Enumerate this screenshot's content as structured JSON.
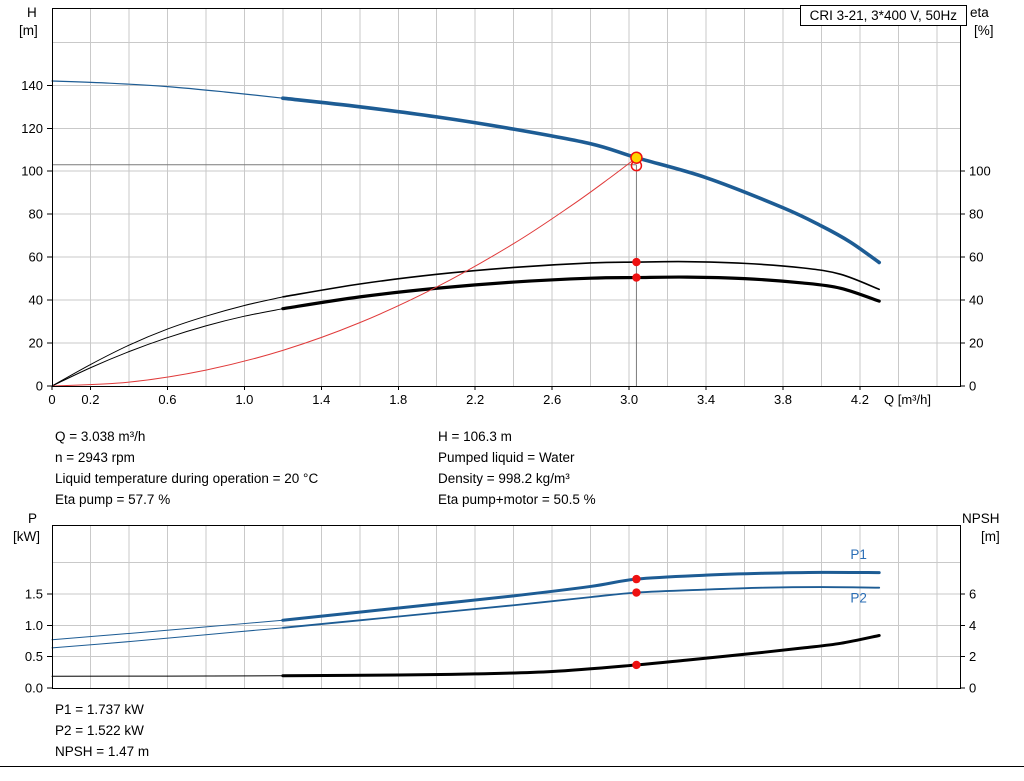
{
  "title_box": "CRI 3-21, 3*400 V, 50Hz",
  "colors": {
    "blue": "#1d5c94",
    "black": "#000000",
    "red": "#e03a3a",
    "marker_red": "#ee1111",
    "marker_yellow": "#ffd400",
    "grid": "#c9c9c9",
    "crosshair": "#7a7a7a",
    "label_blue": "#2a6db5"
  },
  "axis_titles": {
    "h_top": "H",
    "h_unit": "[m]",
    "eta_top": "eta",
    "eta_unit": "[%]",
    "p_top": "P",
    "p_unit": "[kW]",
    "npsh_top": "NPSH",
    "npsh_unit": "[m]"
  },
  "annotations": {
    "left": [
      "Q = 3.038 m³/h",
      "n = 2943 rpm",
      "Liquid temperature during operation = 20 °C",
      "Eta pump = 57.7 %"
    ],
    "right": [
      "H = 106.3 m",
      "Pumped liquid = Water",
      "Density = 998.2 kg/m³",
      "Eta pump+motor = 50.5 %"
    ],
    "bottom": [
      "P1 = 1.737 kW",
      "P2 = 1.522 kW",
      "NPSH = 1.47 m"
    ]
  },
  "chart_data": [
    {
      "type": "line",
      "title": "CRI 3-21, 3*400 V, 50Hz — Head and efficiency vs flow",
      "x_axis": {
        "label": "Q [m³/h]",
        "min": 0,
        "max": 4.72,
        "grid_step": 0.2,
        "ticks": [
          [
            0,
            "0"
          ],
          [
            0.2,
            "0.2"
          ],
          [
            0.6,
            "0.6"
          ],
          [
            1,
            "1.0"
          ],
          [
            1.4,
            "1.4"
          ],
          [
            1.8,
            "1.8"
          ],
          [
            2.2,
            "2.2"
          ],
          [
            2.6,
            "2.6"
          ],
          [
            3,
            "3.0"
          ],
          [
            3.4,
            "3.4"
          ],
          [
            3.8,
            "3.8"
          ],
          [
            4.2,
            "4.2"
          ]
        ]
      },
      "y_left": {
        "label": "H [m]",
        "min": 0,
        "max": 176,
        "grid_step": 20,
        "ticks": [
          [
            0,
            "0"
          ],
          [
            20,
            "20"
          ],
          [
            40,
            "40"
          ],
          [
            60,
            "60"
          ],
          [
            80,
            "80"
          ],
          [
            100,
            "100"
          ],
          [
            120,
            "120"
          ],
          [
            140,
            "140"
          ]
        ]
      },
      "y_right": {
        "label": "eta [%]",
        "min": 0,
        "max": 176,
        "ticks": [
          [
            0,
            "0"
          ],
          [
            20,
            "20"
          ],
          [
            40,
            "40"
          ],
          [
            60,
            "60"
          ],
          [
            80,
            "80"
          ],
          [
            100,
            "100"
          ]
        ]
      },
      "crosshair": {
        "q": 3.038,
        "v": 103
      },
      "series": [
        {
          "name": "h-q-curve-extended",
          "axis": "left",
          "color": "#1d5c94",
          "width": 1.2,
          "points": [
            [
              0,
              142
            ],
            [
              0.3,
              141
            ],
            [
              0.6,
              139.4
            ],
            [
              0.9,
              136.9
            ],
            [
              1.2,
              134
            ]
          ]
        },
        {
          "name": "h-q-curve",
          "axis": "left",
          "color": "#1d5c94",
          "width": 3.6,
          "points": [
            [
              1.2,
              134
            ],
            [
              1.6,
              130
            ],
            [
              2.0,
              125.3
            ],
            [
              2.4,
              119.6
            ],
            [
              2.8,
              112.8
            ],
            [
              3.038,
              106.3
            ],
            [
              3.4,
              97
            ],
            [
              3.8,
              83
            ],
            [
              4.0,
              74.5
            ],
            [
              4.15,
              67
            ],
            [
              4.3,
              57.5
            ]
          ]
        },
        {
          "name": "eta-pump-curve-extended",
          "axis": "right",
          "color": "#000000",
          "width": 1,
          "points": [
            [
              0,
              0
            ],
            [
              0.2,
              10
            ],
            [
              0.4,
              19
            ],
            [
              0.6,
              26.5
            ],
            [
              0.8,
              32.5
            ],
            [
              1.0,
              37.5
            ],
            [
              1.2,
              41.5
            ]
          ]
        },
        {
          "name": "eta-pump-curve",
          "axis": "right",
          "color": "#000000",
          "width": 1.6,
          "points": [
            [
              1.2,
              41.5
            ],
            [
              1.6,
              47.5
            ],
            [
              2.0,
              52
            ],
            [
              2.4,
              55.2
            ],
            [
              2.8,
              57.3
            ],
            [
              3.038,
              57.7
            ],
            [
              3.3,
              57.9
            ],
            [
              3.6,
              57.1
            ],
            [
              3.9,
              55
            ],
            [
              4.1,
              52
            ],
            [
              4.3,
              45
            ]
          ]
        },
        {
          "name": "eta-pump-motor-curve-extended",
          "axis": "right",
          "color": "#000000",
          "width": 1,
          "points": [
            [
              0,
              0
            ],
            [
              0.2,
              8.5
            ],
            [
              0.4,
              16
            ],
            [
              0.6,
              22.5
            ],
            [
              0.8,
              28
            ],
            [
              1.0,
              32.5
            ],
            [
              1.2,
              36
            ]
          ]
        },
        {
          "name": "eta-pump-motor-curve",
          "axis": "right",
          "color": "#000000",
          "width": 3.2,
          "points": [
            [
              1.2,
              36
            ],
            [
              1.6,
              41.5
            ],
            [
              2.0,
              45.5
            ],
            [
              2.4,
              48.4
            ],
            [
              2.8,
              50.2
            ],
            [
              3.038,
              50.5
            ],
            [
              3.3,
              50.7
            ],
            [
              3.6,
              50
            ],
            [
              3.9,
              48
            ],
            [
              4.1,
              45.5
            ],
            [
              4.3,
              39.5
            ]
          ]
        },
        {
          "name": "system-curve",
          "axis": "left",
          "color": "#e03a3a",
          "width": 1,
          "points": [
            [
              0,
              0
            ],
            [
              0.4,
              1.8
            ],
            [
              0.8,
              7.4
            ],
            [
              1.2,
              16.6
            ],
            [
              1.6,
              29.5
            ],
            [
              2.0,
              46.1
            ],
            [
              2.4,
              66.3
            ],
            [
              2.7,
              84
            ],
            [
              2.9,
              96.9
            ],
            [
              3.038,
              106.3
            ]
          ]
        }
      ],
      "markers": [
        {
          "name": "requested-duty-marker",
          "shape": "circle",
          "q": 3.038,
          "v": 102.6,
          "axis": "left",
          "r": 5,
          "fill": "none",
          "stroke": "#ee1111"
        },
        {
          "name": "duty-point-marker",
          "shape": "circle",
          "q": 3.038,
          "v": 106.3,
          "axis": "left",
          "r": 5.5,
          "fill": "#ffd400",
          "stroke": "#ee1111"
        },
        {
          "name": "eta-pump-duty-marker",
          "shape": "dot",
          "q": 3.038,
          "v": 57.7,
          "axis": "right",
          "r": 4.2,
          "fill": "#ee1111"
        },
        {
          "name": "eta-pump-motor-duty-marker",
          "shape": "dot",
          "q": 3.038,
          "v": 50.5,
          "axis": "right",
          "r": 4.2,
          "fill": "#ee1111"
        }
      ],
      "labels": []
    },
    {
      "type": "line",
      "title": "Power and NPSH vs flow",
      "x_axis": {
        "label": "",
        "min": 0,
        "max": 4.72,
        "grid_step": 0.2,
        "ticks": []
      },
      "y_left": {
        "label": "P [kW]",
        "min": 0,
        "max": 2.6,
        "grid_step": 0.5,
        "grid_max": 2.0,
        "ticks": [
          [
            0,
            "0.0"
          ],
          [
            0.5,
            "0.5"
          ],
          [
            1,
            "1.0"
          ],
          [
            1.5,
            "1.5"
          ]
        ]
      },
      "y_right": {
        "label": "NPSH [m]",
        "min": 0,
        "max": 10.4,
        "ticks": [
          [
            0,
            "0"
          ],
          [
            2,
            "2"
          ],
          [
            4,
            "4"
          ],
          [
            6,
            "6"
          ]
        ]
      },
      "series": [
        {
          "name": "p1-curve-extended",
          "axis": "left",
          "color": "#1d5c94",
          "width": 1,
          "points": [
            [
              0,
              0.77
            ],
            [
              0.4,
              0.87
            ],
            [
              0.8,
              0.975
            ],
            [
              1.2,
              1.08
            ]
          ]
        },
        {
          "name": "p1-curve",
          "axis": "left",
          "color": "#1d5c94",
          "width": 3,
          "points": [
            [
              1.2,
              1.08
            ],
            [
              1.6,
              1.21
            ],
            [
              2.0,
              1.34
            ],
            [
              2.4,
              1.47
            ],
            [
              2.8,
              1.62
            ],
            [
              3.038,
              1.737
            ],
            [
              3.4,
              1.8
            ],
            [
              3.7,
              1.83
            ],
            [
              4.0,
              1.845
            ],
            [
              4.3,
              1.84
            ]
          ]
        },
        {
          "name": "p2-curve-extended",
          "axis": "left",
          "color": "#1d5c94",
          "width": 1,
          "points": [
            [
              0,
              0.64
            ],
            [
              0.4,
              0.74
            ],
            [
              0.8,
              0.85
            ],
            [
              1.2,
              0.96
            ]
          ]
        },
        {
          "name": "p2-curve",
          "axis": "left",
          "color": "#1d5c94",
          "width": 1.8,
          "points": [
            [
              1.2,
              0.96
            ],
            [
              1.6,
              1.08
            ],
            [
              2.0,
              1.2
            ],
            [
              2.4,
              1.32
            ],
            [
              2.8,
              1.45
            ],
            [
              3.038,
              1.522
            ],
            [
              3.4,
              1.57
            ],
            [
              3.7,
              1.6
            ],
            [
              4.0,
              1.61
            ],
            [
              4.3,
              1.6
            ]
          ]
        },
        {
          "name": "npsh-curve-extended",
          "axis": "right",
          "color": "#000000",
          "width": 1,
          "points": [
            [
              0,
              0.75
            ],
            [
              0.6,
              0.76
            ],
            [
              1.2,
              0.78
            ]
          ]
        },
        {
          "name": "npsh-curve",
          "axis": "right",
          "color": "#000000",
          "width": 3,
          "points": [
            [
              1.2,
              0.78
            ],
            [
              1.8,
              0.83
            ],
            [
              2.2,
              0.9
            ],
            [
              2.6,
              1.05
            ],
            [
              3.038,
              1.47
            ],
            [
              3.3,
              1.78
            ],
            [
              3.6,
              2.15
            ],
            [
              3.9,
              2.55
            ],
            [
              4.1,
              2.85
            ],
            [
              4.3,
              3.35
            ]
          ]
        }
      ],
      "markers": [
        {
          "name": "p1-duty-marker",
          "shape": "dot",
          "q": 3.038,
          "v": 1.737,
          "axis": "left",
          "r": 4.2,
          "fill": "#ee1111"
        },
        {
          "name": "p2-duty-marker",
          "shape": "dot",
          "q": 3.038,
          "v": 1.522,
          "axis": "left",
          "r": 4.2,
          "fill": "#ee1111"
        },
        {
          "name": "npsh-duty-marker",
          "shape": "dot",
          "q": 3.038,
          "v": 1.47,
          "axis": "right",
          "r": 4.2,
          "fill": "#ee1111"
        }
      ],
      "labels": [
        {
          "name": "p1-series-label",
          "text": "P1",
          "q": 4.15,
          "v": 2.06,
          "axis": "left",
          "color": "#2a6db5"
        },
        {
          "name": "p2-series-label",
          "text": "P2",
          "q": 4.15,
          "v": 1.36,
          "axis": "left",
          "color": "#2a6db5"
        }
      ]
    }
  ]
}
